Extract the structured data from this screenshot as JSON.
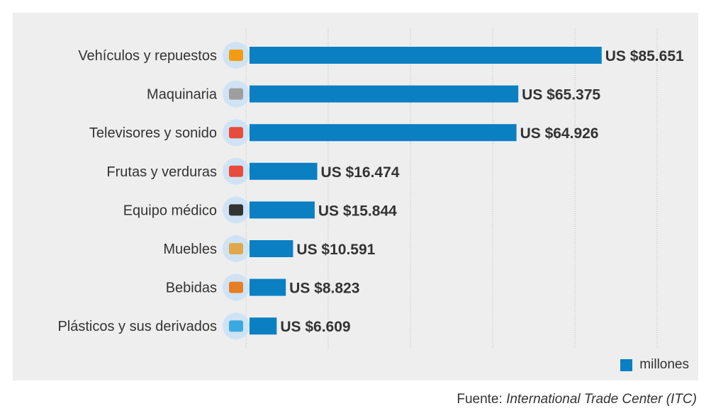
{
  "chart_data": {
    "type": "bar",
    "orientation": "horizontal",
    "categories": [
      "Vehículos y repuestos",
      "Maquinaria",
      "Televisores y sonido",
      "Frutas y verduras",
      "Equipo médico",
      "Muebles",
      "Bebidas",
      "Plásticos y sus derivados"
    ],
    "values": [
      85651,
      65375,
      64926,
      16474,
      15844,
      10591,
      8823,
      6609
    ],
    "data_labels": [
      "US $85.651",
      "US $65.375",
      "US $64.926",
      "US $16.474",
      "US $15.844",
      "US $10.591",
      "US $8.823",
      "US $6.609"
    ],
    "icons": [
      "fruits-vegetables-icon",
      "machinery-icon",
      "tv-icon",
      "seafood-icon",
      "medical-kit-icon",
      "furniture-icon",
      "drinks-icon",
      "plastics-icon"
    ],
    "xlim": [
      0,
      100000
    ],
    "grid": true,
    "legend": {
      "label": "millones",
      "position": "bottom-right"
    },
    "bar_color": "#0a7fc2"
  },
  "source": {
    "prefix": "Fuente:",
    "name": "International Trade Center (ITC)"
  }
}
